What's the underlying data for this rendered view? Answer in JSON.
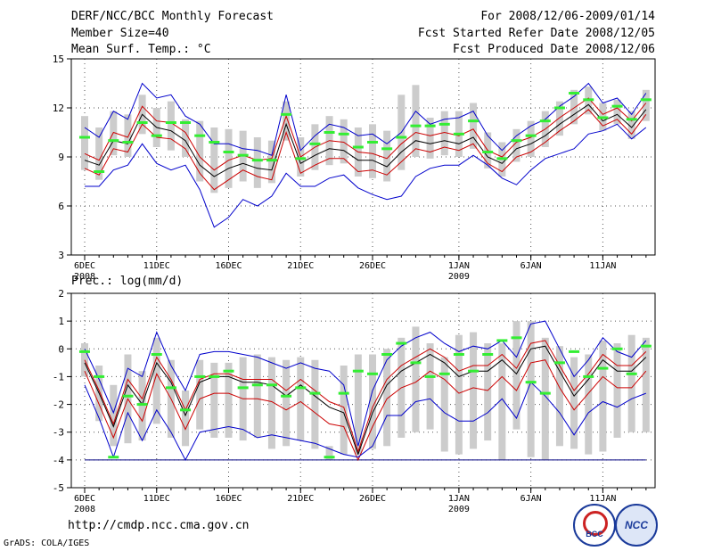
{
  "header": {
    "title": "DERF/NCC/BCC Monthly Forecast",
    "member_size": "Member Size=40",
    "variable": "Mean Surf. Temp.: °C",
    "period": "For 2008/12/06-2009/01/14",
    "fcst_started": "Fcst Started Refer Date 2008/12/05",
    "fcst_produced": "Fcst Produced Date 2008/12/06"
  },
  "footer": {
    "url": "http://cmdp.ncc.cma.gov.cn",
    "grads": "GrADS: COLA/IGES",
    "logo_left": "BCC",
    "logo_right": "NCC"
  },
  "colors": {
    "max_min": "#0000cc",
    "pctl": "#cc0000",
    "median": "#000000",
    "box": "#cccccc",
    "mean_marker": "#33ee33",
    "floor_line": "#000080"
  },
  "chart_data": [
    {
      "type": "line",
      "panel": "temperature",
      "title": "Mean Surf. Temp.: °C",
      "ylim": [
        3,
        15
      ],
      "yticks": [
        3,
        6,
        9,
        12,
        15
      ],
      "xtick_days": [
        0,
        5,
        10,
        15,
        20,
        26,
        31,
        36
      ],
      "xtick_labels": [
        "6DEC",
        "11DEC",
        "16DEC",
        "21DEC",
        "26DEC",
        "1JAN",
        "6JAN",
        "11JAN"
      ],
      "xtick_sublabels": {
        "0": "2008",
        "26": "2009"
      },
      "days": 40,
      "series": [
        {
          "name": "max",
          "values": [
            7.2,
            7.2,
            8.2,
            8.5,
            9.8,
            8.6,
            8.2,
            8.5,
            7.0,
            4.7,
            5.3,
            6.4,
            6.0,
            6.6,
            8.0,
            7.2,
            7.2,
            7.7,
            7.9,
            7.1,
            6.7,
            6.4,
            6.6,
            7.8,
            8.3,
            8.5,
            8.5,
            9.1,
            8.5,
            7.7,
            7.3,
            8.2,
            8.9,
            9.2,
            9.5,
            10.4,
            10.6,
            11.0,
            10.1,
            10.8
          ]
        },
        {
          "name": "p25",
          "values": [
            8.3,
            7.9,
            9.5,
            9.3,
            11.0,
            10.2,
            10.1,
            9.5,
            8.0,
            7.0,
            7.6,
            8.2,
            7.8,
            7.6,
            10.5,
            8.0,
            8.5,
            8.9,
            8.9,
            8.1,
            8.2,
            7.9,
            8.7,
            9.5,
            9.3,
            9.6,
            9.4,
            9.8,
            8.6,
            8.1,
            9.0,
            9.3,
            9.9,
            10.6,
            11.2,
            11.9,
            10.9,
            11.3,
            10.4,
            11.6
          ]
        },
        {
          "name": "median",
          "values": [
            8.8,
            8.5,
            10.0,
            9.8,
            11.6,
            10.8,
            10.6,
            10.0,
            8.5,
            7.8,
            8.3,
            8.6,
            8.3,
            8.2,
            11.0,
            8.6,
            9.1,
            9.5,
            9.4,
            8.8,
            8.8,
            8.4,
            9.3,
            10.0,
            9.8,
            10.0,
            9.8,
            10.2,
            9.0,
            8.6,
            9.5,
            9.8,
            10.3,
            11.0,
            11.6,
            12.2,
            11.2,
            11.6,
            10.8,
            11.9
          ]
        },
        {
          "name": "p75",
          "values": [
            9.2,
            8.8,
            10.5,
            10.2,
            12.1,
            11.2,
            11.1,
            10.5,
            9.0,
            8.2,
            8.8,
            9.1,
            8.8,
            8.9,
            11.5,
            9.0,
            9.6,
            10.0,
            9.9,
            9.3,
            9.2,
            8.9,
            9.8,
            10.5,
            10.3,
            10.5,
            10.3,
            10.7,
            9.4,
            9.0,
            9.9,
            10.2,
            10.7,
            11.4,
            12.0,
            12.6,
            11.6,
            12.0,
            11.2,
            12.3
          ]
        },
        {
          "name": "min",
          "values": [
            10.8,
            10.2,
            11.8,
            11.3,
            13.5,
            12.6,
            12.8,
            11.5,
            11.0,
            9.8,
            9.8,
            9.5,
            9.4,
            9.1,
            12.8,
            9.4,
            10.3,
            11.0,
            10.8,
            10.3,
            10.4,
            9.8,
            10.5,
            11.8,
            11.0,
            11.3,
            11.4,
            11.8,
            10.3,
            9.4,
            10.3,
            10.9,
            11.3,
            12.1,
            12.7,
            13.5,
            12.3,
            12.6,
            11.6,
            12.9
          ]
        },
        {
          "name": "ens_mean",
          "values": [
            10.2,
            8.1,
            10.0,
            9.9,
            11.1,
            10.3,
            11.1,
            11.1,
            10.3,
            9.9,
            9.3,
            9.1,
            8.8,
            8.8,
            11.6,
            8.9,
            9.8,
            10.5,
            10.4,
            9.6,
            9.9,
            9.5,
            10.2,
            10.9,
            10.9,
            11.0,
            10.4,
            11.2,
            9.3,
            8.9,
            10.0,
            10.3,
            11.2,
            12.0,
            12.9,
            12.5,
            11.4,
            12.1,
            11.3,
            12.5
          ]
        }
      ],
      "box_low": [
        8.2,
        7.6,
        9.1,
        9.0,
        10.4,
        9.6,
        9.4,
        9.0,
        7.5,
        6.8,
        7.1,
        7.5,
        7.1,
        7.4,
        10.0,
        7.8,
        8.2,
        8.5,
        8.6,
        7.8,
        7.7,
        7.5,
        8.2,
        9.0,
        8.9,
        9.1,
        9.0,
        9.5,
        8.3,
        7.8,
        8.7,
        9.0,
        9.6,
        10.3,
        11.0,
        11.6,
        10.6,
        11.0,
        10.1,
        11.2
      ],
      "box_high": [
        11.5,
        10.8,
        11.8,
        11.6,
        12.8,
        12.0,
        12.4,
        11.3,
        11.2,
        10.8,
        10.7,
        10.6,
        10.2,
        10.0,
        12.4,
        10.2,
        11.0,
        11.5,
        11.3,
        10.8,
        11.0,
        10.6,
        12.8,
        13.4,
        11.4,
        11.8,
        11.8,
        12.3,
        10.5,
        9.9,
        10.7,
        11.2,
        11.8,
        12.4,
        13.1,
        13.3,
        12.3,
        12.5,
        11.8,
        13.1
      ]
    },
    {
      "type": "line",
      "panel": "precipitation",
      "title": "Prec.: log(mm/d)",
      "ylim": [
        -5,
        2
      ],
      "yticks": [
        -5,
        -4,
        -3,
        -2,
        -1,
        0,
        1,
        2
      ],
      "xtick_days": [
        0,
        5,
        10,
        15,
        20,
        26,
        31,
        36
      ],
      "xtick_labels": [
        "6DEC",
        "11DEC",
        "16DEC",
        "21DEC",
        "26DEC",
        "1JAN",
        "6JAN",
        "11JAN"
      ],
      "xtick_sublabels": {
        "0": "2008",
        "26": "2009"
      },
      "days": 40,
      "floor_value": -4,
      "series": [
        {
          "name": "max",
          "values": [
            0.0,
            -1.1,
            -2.3,
            -0.7,
            -1.0,
            0.6,
            -0.6,
            -1.5,
            -0.2,
            -0.1,
            -0.1,
            -0.2,
            -0.3,
            -0.5,
            -0.7,
            -0.5,
            -0.7,
            -0.8,
            -1.3,
            -3.5,
            -1.5,
            -0.4,
            0.1,
            0.4,
            0.6,
            0.2,
            -0.1,
            0.1,
            0.0,
            0.3,
            -0.3,
            0.9,
            1.0,
            0.0,
            -1.0,
            -0.4,
            0.4,
            -0.1,
            -0.3,
            0.3
          ]
        },
        {
          "name": "p75",
          "values": [
            -0.4,
            -1.5,
            -2.7,
            -1.1,
            -1.8,
            -0.3,
            -1.1,
            -2.2,
            -1.1,
            -0.9,
            -0.9,
            -1.1,
            -1.1,
            -1.1,
            -1.5,
            -1.1,
            -1.5,
            -1.9,
            -2.1,
            -3.7,
            -2.1,
            -1.1,
            -0.6,
            -0.3,
            0.0,
            -0.3,
            -0.8,
            -0.6,
            -0.6,
            -0.2,
            -0.7,
            0.2,
            0.3,
            -0.6,
            -1.5,
            -0.9,
            -0.2,
            -0.6,
            -0.6,
            -0.1
          ]
        },
        {
          "name": "median",
          "values": [
            -0.5,
            -1.6,
            -2.8,
            -1.3,
            -2.0,
            -0.5,
            -1.2,
            -2.4,
            -1.2,
            -1.0,
            -1.0,
            -1.2,
            -1.2,
            -1.3,
            -1.7,
            -1.3,
            -1.7,
            -2.1,
            -2.3,
            -3.8,
            -2.3,
            -1.3,
            -0.8,
            -0.5,
            -0.2,
            -0.5,
            -1.0,
            -0.8,
            -0.8,
            -0.4,
            -0.9,
            0.0,
            0.1,
            -0.8,
            -1.7,
            -1.1,
            -0.4,
            -0.8,
            -0.8,
            -0.3
          ]
        },
        {
          "name": "p25",
          "values": [
            -0.8,
            -2.0,
            -3.2,
            -1.8,
            -2.6,
            -0.9,
            -1.8,
            -2.9,
            -1.8,
            -1.6,
            -1.6,
            -1.8,
            -1.8,
            -1.9,
            -2.2,
            -1.9,
            -2.3,
            -2.7,
            -2.8,
            -4.0,
            -2.8,
            -1.8,
            -1.4,
            -1.2,
            -0.8,
            -1.1,
            -1.6,
            -1.4,
            -1.5,
            -1.0,
            -1.5,
            -0.5,
            -0.4,
            -1.4,
            -2.2,
            -1.6,
            -1.0,
            -1.4,
            -1.4,
            -0.8
          ]
        },
        {
          "name": "min",
          "values": [
            -1.3,
            -2.5,
            -3.9,
            -2.3,
            -3.3,
            -2.2,
            -3.0,
            -4.0,
            -3.0,
            -2.9,
            -2.8,
            -2.9,
            -3.2,
            -3.1,
            -3.2,
            -3.3,
            -3.4,
            -3.6,
            -3.8,
            -3.9,
            -3.5,
            -2.4,
            -2.4,
            -1.9,
            -1.8,
            -2.3,
            -2.6,
            -2.6,
            -2.3,
            -1.8,
            -2.5,
            -1.2,
            -1.7,
            -2.3,
            -3.1,
            -2.3,
            -1.9,
            -2.1,
            -1.8,
            -1.6
          ]
        },
        {
          "name": "ens_mean",
          "values": [
            -0.1,
            -1.0,
            -3.9,
            -1.7,
            -2.0,
            -0.2,
            -1.4,
            -2.2,
            -1.0,
            -1.0,
            -0.8,
            -1.4,
            -1.3,
            -1.3,
            -1.7,
            -1.4,
            -1.6,
            -3.9,
            -1.6,
            -0.8,
            -0.9,
            -0.2,
            0.2,
            -0.5,
            -1.0,
            -0.9,
            -0.2,
            -0.8,
            -0.2,
            0.3,
            0.4,
            -1.2,
            -1.6,
            -0.5,
            -0.1,
            -1.0,
            -0.7,
            0.0,
            -0.9,
            0.1
          ]
        },
        {
          "name": "ens_mean_end",
          "values": [
            -0.3
          ]
        }
      ],
      "box_low": [
        -1.0,
        -2.6,
        -3.5,
        -3.4,
        -3.3,
        -2.7,
        -3.2,
        -3.5,
        -2.9,
        -3.2,
        -3.2,
        -3.3,
        -3.2,
        -3.6,
        -3.5,
        -3.3,
        -3.6,
        -4.0,
        -3.8,
        -3.8,
        -3.6,
        -3.5,
        -3.2,
        -3.0,
        -2.9,
        -3.7,
        -3.8,
        -3.6,
        -3.3,
        -4.0,
        -2.9,
        -3.9,
        -4.0,
        -3.5,
        -3.6,
        -3.8,
        -3.7,
        -3.2,
        -3.0,
        -3.0
      ],
      "box_high": [
        0.2,
        -0.6,
        -1.3,
        -0.2,
        -0.8,
        0.4,
        -0.4,
        -1.5,
        -0.4,
        -0.5,
        -0.5,
        -0.3,
        -0.2,
        -0.3,
        -0.4,
        -0.3,
        -0.4,
        -3.5,
        -0.6,
        -0.2,
        -0.2,
        0.0,
        0.4,
        0.8,
        0.2,
        -0.3,
        0.5,
        0.6,
        0.2,
        0.2,
        1.0,
        1.0,
        0.4,
        0.1,
        -0.3,
        -0.2,
        0.3,
        0.2,
        0.5,
        0.4
      ]
    }
  ]
}
